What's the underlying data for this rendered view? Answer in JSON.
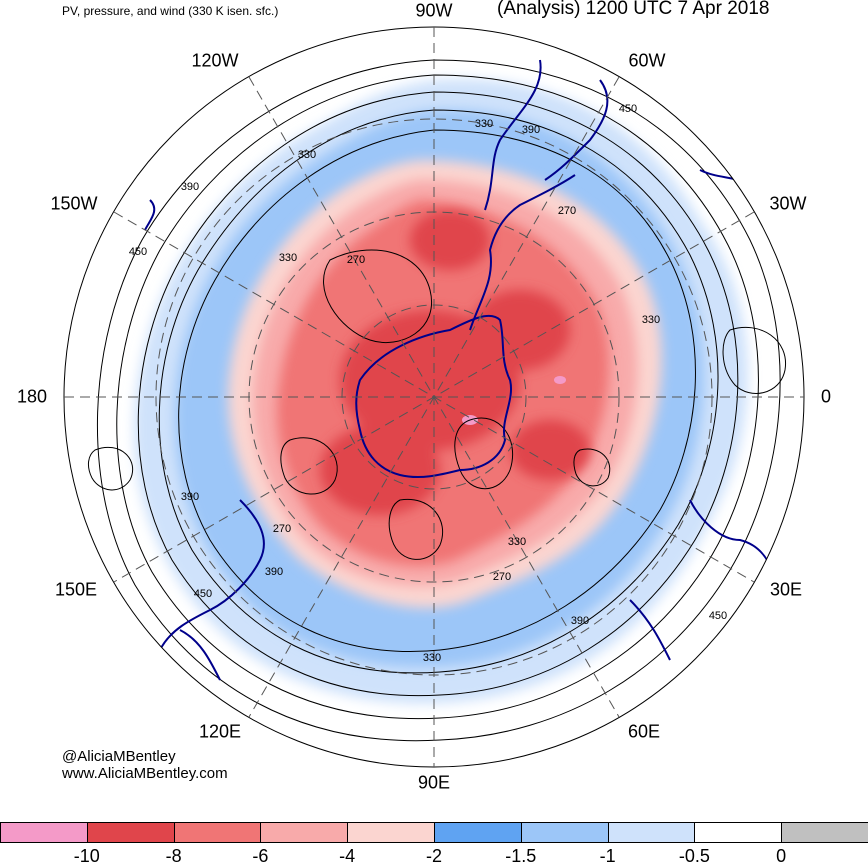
{
  "header": {
    "small_title": "PV, pressure, and wind (330 K isen. sfc.)",
    "main_title": "(Analysis) 1200 UTC 7 Apr 2018"
  },
  "credits": {
    "handle": "@AliciaMBentley",
    "website": "www.AliciaMBentley.com"
  },
  "longitude_labels": {
    "top": "90W",
    "top_right": "60W",
    "right_upper": "30W",
    "right": "0",
    "right_lower": "30E",
    "bottom_right": "60E",
    "bottom": "90E",
    "bottom_left": "120E",
    "left_lower": "150E",
    "left": "180",
    "left_upper": "150W",
    "top_left": "120W"
  },
  "pressure_labels": [
    "330",
    "390",
    "450",
    "270",
    "330",
    "390",
    "270",
    "330",
    "450",
    "390",
    "270",
    "390",
    "450",
    "330",
    "450",
    "390",
    "330",
    "270",
    "330"
  ],
  "colorbar": {
    "ticks": [
      "-10",
      "-8",
      "-6",
      "-4",
      "-2",
      "-1.5",
      "-1",
      "-0.5",
      "0"
    ],
    "colors": [
      "#f49ac8",
      "#e0454b",
      "#f07575",
      "#f8aaaa",
      "#fbd5d0",
      "#5fa3f2",
      "#9cc6f8",
      "#cfe2fb",
      "#ffffff",
      "#c0c0c0"
    ]
  },
  "colors": {
    "coastline": "#00008b",
    "contour": "#000000",
    "grid": "#555555"
  }
}
